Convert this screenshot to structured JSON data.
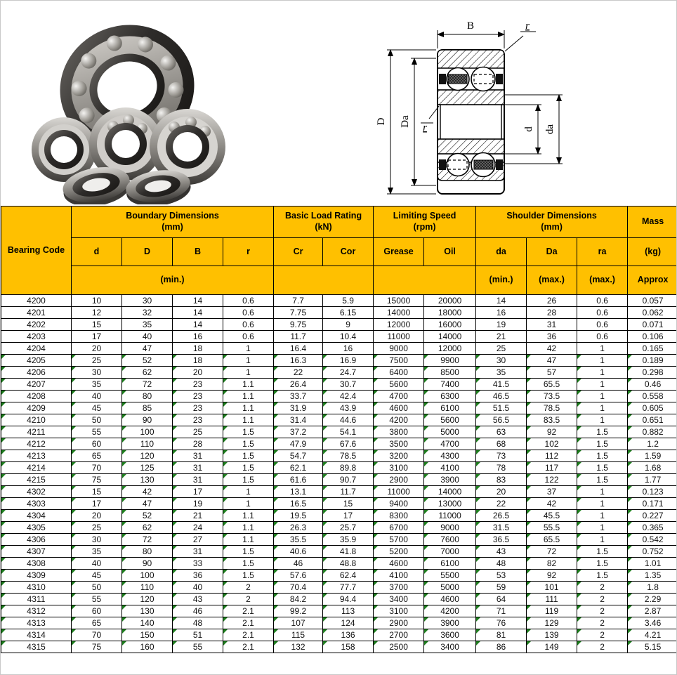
{
  "colors": {
    "header_bg": "#FFC000",
    "grid": "#000000",
    "marker_green": "#1e7e1e"
  },
  "diagram": {
    "labels": {
      "B": "B",
      "r_outer": "r",
      "D": "D",
      "Da": "Da",
      "r_inner": "r",
      "d": "d",
      "da": "da"
    }
  },
  "table": {
    "header": {
      "bearing_code": "Bearing Code",
      "groups": [
        {
          "title": "Boundary Dimensions",
          "unit": "(mm)"
        },
        {
          "title": "Basic Load Rating",
          "unit": "(kN)"
        },
        {
          "title": "Limiting Speed",
          "unit": "(rpm)"
        },
        {
          "title": "Shoulder Dimensions",
          "unit": "(mm)"
        },
        {
          "title": "Mass",
          "unit": ""
        }
      ],
      "cols": [
        "d",
        "D",
        "B",
        "r",
        "Cr",
        "Cor",
        "Grease",
        "Oil",
        "da",
        "Da",
        "ra",
        "(kg)"
      ],
      "subs": {
        "boundary": "(min.)",
        "load": "",
        "speed": "",
        "da": "(min.)",
        "Da": "(max.)",
        "ra": "(max.)",
        "mass": "Approx"
      }
    },
    "rows": [
      {
        "marked": false,
        "cells": [
          "4200",
          "10",
          "30",
          "14",
          "0.6",
          "7.7",
          "5.9",
          "15000",
          "20000",
          "14",
          "26",
          "0.6",
          "0.057"
        ]
      },
      {
        "marked": false,
        "cells": [
          "4201",
          "12",
          "32",
          "14",
          "0.6",
          "7.75",
          "6.15",
          "14000",
          "18000",
          "16",
          "28",
          "0.6",
          "0.062"
        ]
      },
      {
        "marked": false,
        "cells": [
          "4202",
          "15",
          "35",
          "14",
          "0.6",
          "9.75",
          "9",
          "12000",
          "16000",
          "19",
          "31",
          "0.6",
          "0.071"
        ]
      },
      {
        "marked": false,
        "cells": [
          "4203",
          "17",
          "40",
          "16",
          "0.6",
          "11.7",
          "10.4",
          "11000",
          "14000",
          "21",
          "36",
          "0.6",
          "0.106"
        ]
      },
      {
        "marked": false,
        "cells": [
          "4204",
          "20",
          "47",
          "18",
          "1",
          "16.4",
          "16",
          "9000",
          "12000",
          "25",
          "42",
          "1",
          "0.165"
        ]
      },
      {
        "marked": true,
        "cells": [
          "4205",
          "25",
          "52",
          "18",
          "1",
          "16.3",
          "16.9",
          "7500",
          "9900",
          "30",
          "47",
          "1",
          "0.189"
        ]
      },
      {
        "marked": true,
        "cells": [
          "4206",
          "30",
          "62",
          "20",
          "1",
          "22",
          "24.7",
          "6400",
          "8500",
          "35",
          "57",
          "1",
          "0.298"
        ]
      },
      {
        "marked": true,
        "cells": [
          "4207",
          "35",
          "72",
          "23",
          "1.1",
          "26.4",
          "30.7",
          "5600",
          "7400",
          "41.5",
          "65.5",
          "1",
          "0.46"
        ]
      },
      {
        "marked": true,
        "cells": [
          "4208",
          "40",
          "80",
          "23",
          "1.1",
          "33.7",
          "42.4",
          "4700",
          "6300",
          "46.5",
          "73.5",
          "1",
          "0.558"
        ]
      },
      {
        "marked": true,
        "cells": [
          "4209",
          "45",
          "85",
          "23",
          "1.1",
          "31.9",
          "43.9",
          "4600",
          "6100",
          "51.5",
          "78.5",
          "1",
          "0.605"
        ]
      },
      {
        "marked": true,
        "cells": [
          "4210",
          "50",
          "90",
          "23",
          "1.1",
          "31.4",
          "44.6",
          "4200",
          "5600",
          "56.5",
          "83.5",
          "1",
          "0.651"
        ]
      },
      {
        "marked": true,
        "cells": [
          "4211",
          "55",
          "100",
          "25",
          "1.5",
          "37.2",
          "54.1",
          "3800",
          "5000",
          "63",
          "92",
          "1.5",
          "0.882"
        ]
      },
      {
        "marked": true,
        "cells": [
          "4212",
          "60",
          "110",
          "28",
          "1.5",
          "47.9",
          "67.6",
          "3500",
          "4700",
          "68",
          "102",
          "1.5",
          "1.2"
        ]
      },
      {
        "marked": true,
        "cells": [
          "4213",
          "65",
          "120",
          "31",
          "1.5",
          "54.7",
          "78.5",
          "3200",
          "4300",
          "73",
          "112",
          "1.5",
          "1.59"
        ]
      },
      {
        "marked": true,
        "cells": [
          "4214",
          "70",
          "125",
          "31",
          "1.5",
          "62.1",
          "89.8",
          "3100",
          "4100",
          "78",
          "117",
          "1.5",
          "1.68"
        ]
      },
      {
        "marked": true,
        "cells": [
          "4215",
          "75",
          "130",
          "31",
          "1.5",
          "61.6",
          "90.7",
          "2900",
          "3900",
          "83",
          "122",
          "1.5",
          "1.77"
        ]
      },
      {
        "marked": true,
        "cells": [
          "4302",
          "15",
          "42",
          "17",
          "1",
          "13.1",
          "11.7",
          "11000",
          "14000",
          "20",
          "37",
          "1",
          "0.123"
        ]
      },
      {
        "marked": true,
        "cells": [
          "4303",
          "17",
          "47",
          "19",
          "1",
          "16.5",
          "15",
          "9400",
          "13000",
          "22",
          "42",
          "1",
          "0.171"
        ]
      },
      {
        "marked": true,
        "cells": [
          "4304",
          "20",
          "52",
          "21",
          "1.1",
          "19.5",
          "17",
          "8300",
          "11000",
          "26.5",
          "45.5",
          "1",
          "0.227"
        ]
      },
      {
        "marked": true,
        "cells": [
          "4305",
          "25",
          "62",
          "24",
          "1.1",
          "26.3",
          "25.7",
          "6700",
          "9000",
          "31.5",
          "55.5",
          "1",
          "0.365"
        ]
      },
      {
        "marked": true,
        "cells": [
          "4306",
          "30",
          "72",
          "27",
          "1.1",
          "35.5",
          "35.9",
          "5700",
          "7600",
          "36.5",
          "65.5",
          "1",
          "0.542"
        ]
      },
      {
        "marked": true,
        "cells": [
          "4307",
          "35",
          "80",
          "31",
          "1.5",
          "40.6",
          "41.8",
          "5200",
          "7000",
          "43",
          "72",
          "1.5",
          "0.752"
        ]
      },
      {
        "marked": true,
        "cells": [
          "4308",
          "40",
          "90",
          "33",
          "1.5",
          "46",
          "48.8",
          "4600",
          "6100",
          "48",
          "82",
          "1.5",
          "1.01"
        ]
      },
      {
        "marked": true,
        "cells": [
          "4309",
          "45",
          "100",
          "36",
          "1.5",
          "57.6",
          "62.4",
          "4100",
          "5500",
          "53",
          "92",
          "1.5",
          "1.35"
        ]
      },
      {
        "marked": true,
        "cells": [
          "4310",
          "50",
          "110",
          "40",
          "2",
          "70.4",
          "77.7",
          "3700",
          "5000",
          "59",
          "101",
          "2",
          "1.8"
        ]
      },
      {
        "marked": true,
        "cells": [
          "4311",
          "55",
          "120",
          "43",
          "2",
          "84.2",
          "94.4",
          "3400",
          "4600",
          "64",
          "111",
          "2",
          "2.29"
        ]
      },
      {
        "marked": true,
        "cells": [
          "4312",
          "60",
          "130",
          "46",
          "2.1",
          "99.2",
          "113",
          "3100",
          "4200",
          "71",
          "119",
          "2",
          "2.87"
        ]
      },
      {
        "marked": true,
        "cells": [
          "4313",
          "65",
          "140",
          "48",
          "2.1",
          "107",
          "124",
          "2900",
          "3900",
          "76",
          "129",
          "2",
          "3.46"
        ]
      },
      {
        "marked": true,
        "cells": [
          "4314",
          "70",
          "150",
          "51",
          "2.1",
          "115",
          "136",
          "2700",
          "3600",
          "81",
          "139",
          "2",
          "4.21"
        ]
      },
      {
        "marked": true,
        "cells": [
          "4315",
          "75",
          "160",
          "55",
          "2.1",
          "132",
          "158",
          "2500",
          "3400",
          "86",
          "149",
          "2",
          "5.15"
        ]
      }
    ]
  }
}
